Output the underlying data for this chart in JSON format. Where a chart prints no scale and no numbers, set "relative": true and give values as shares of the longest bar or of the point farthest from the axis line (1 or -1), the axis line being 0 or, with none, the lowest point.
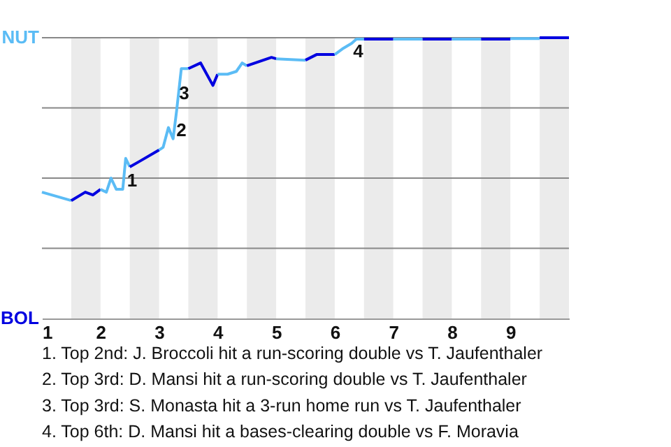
{
  "chart_data": {
    "type": "line",
    "relative": true,
    "xlim": [
      1,
      10
    ],
    "xticks": [
      {
        "value": 1,
        "label": "1"
      },
      {
        "value": 2,
        "label": "2"
      },
      {
        "value": 3,
        "label": "3"
      },
      {
        "value": 4,
        "label": "4"
      },
      {
        "value": 5,
        "label": "5"
      },
      {
        "value": 6,
        "label": "6"
      },
      {
        "value": 7,
        "label": "7"
      },
      {
        "value": 8,
        "label": "8"
      },
      {
        "value": 9,
        "label": "9"
      }
    ],
    "grid": "y",
    "line_style": "solid",
    "marker": "none",
    "series": [
      {
        "color": "#5bbcf5",
        "x": [
          1,
          1.5
        ],
        "values": [
          0.45,
          0.42
        ]
      },
      {
        "color": "#0000e0",
        "x": [
          1.5,
          1.74,
          1.87,
          2
        ],
        "values": [
          0.42,
          0.45,
          0.44,
          0.46
        ]
      },
      {
        "color": "#5bbcf5",
        "x": [
          2,
          2.1,
          2.18,
          2.27,
          2.38,
          2.43,
          2.5
        ],
        "values": [
          0.46,
          0.45,
          0.5,
          0.46,
          0.46,
          0.57,
          0.54
        ]
      },
      {
        "color": "#0000e0",
        "x": [
          2.5,
          2.67,
          3
        ],
        "values": [
          0.54,
          0.56,
          0.6
        ]
      },
      {
        "color": "#5bbcf5",
        "x": [
          3,
          3.07,
          3.16,
          3.24,
          3.3,
          3.38,
          3.5
        ],
        "values": [
          0.6,
          0.61,
          0.68,
          0.64,
          0.74,
          0.89,
          0.89
        ]
      },
      {
        "color": "#0000e0",
        "x": [
          3.5,
          3.71,
          3.92,
          4
        ],
        "values": [
          0.89,
          0.91,
          0.83,
          0.87
        ]
      },
      {
        "color": "#5bbcf5",
        "x": [
          4,
          4.17,
          4.32,
          4.42,
          4.5
        ],
        "values": [
          0.87,
          0.87,
          0.88,
          0.91,
          0.9
        ]
      },
      {
        "color": "#0000e0",
        "x": [
          4.5,
          4.92,
          5
        ],
        "values": [
          0.9,
          0.93,
          0.925
        ]
      },
      {
        "color": "#5bbcf5",
        "x": [
          5,
          5.5
        ],
        "values": [
          0.925,
          0.92
        ]
      },
      {
        "color": "#0000e0",
        "x": [
          5.5,
          5.69,
          6
        ],
        "values": [
          0.92,
          0.94,
          0.94
        ]
      },
      {
        "color": "#5bbcf5",
        "x": [
          6,
          6.13,
          6.29,
          6.37,
          6.5
        ],
        "values": [
          0.94,
          0.96,
          0.98,
          0.995,
          0.995
        ]
      },
      {
        "color": "#0000e0",
        "x": [
          6.5,
          7
        ],
        "values": [
          0.995,
          0.995
        ]
      },
      {
        "color": "#5bbcf5",
        "x": [
          7,
          7.5
        ],
        "values": [
          0.995,
          0.995
        ]
      },
      {
        "color": "#0000e0",
        "x": [
          7.5,
          8
        ],
        "values": [
          0.995,
          0.995
        ]
      },
      {
        "color": "#5bbcf5",
        "x": [
          8,
          8.5
        ],
        "values": [
          0.995,
          0.995
        ]
      },
      {
        "color": "#0000e0",
        "x": [
          8.5,
          9
        ],
        "values": [
          0.995,
          0.995
        ]
      },
      {
        "color": "#5bbcf5",
        "x": [
          9,
          9.5
        ],
        "values": [
          0.997,
          0.997
        ]
      },
      {
        "color": "#0000e0",
        "x": [
          9.5,
          10
        ],
        "values": [
          1,
          1
        ]
      }
    ],
    "bands": [
      {
        "axis": "x",
        "from": 1.5,
        "to": 2,
        "color": "#ebebeb"
      },
      {
        "axis": "x",
        "from": 2.5,
        "to": 3,
        "color": "#ebebeb"
      },
      {
        "axis": "x",
        "from": 3.5,
        "to": 4,
        "color": "#ebebeb"
      },
      {
        "axis": "x",
        "from": 4.5,
        "to": 5,
        "color": "#ebebeb"
      },
      {
        "axis": "x",
        "from": 5.5,
        "to": 6,
        "color": "#ebebeb"
      },
      {
        "axis": "x",
        "from": 6.5,
        "to": 7,
        "color": "#ebebeb"
      },
      {
        "axis": "x",
        "from": 7.5,
        "to": 8,
        "color": "#ebebeb"
      },
      {
        "axis": "x",
        "from": 8.5,
        "to": 9,
        "color": "#ebebeb"
      },
      {
        "axis": "x",
        "from": 9.5,
        "to": 10,
        "color": "#ebebeb"
      }
    ],
    "annotations": [
      "NUT",
      "BOL",
      {
        "text": "1",
        "x": 2.54,
        "y": 0.49
      },
      {
        "text": "2",
        "x": 3.38,
        "y": 0.67
      },
      {
        "text": "3",
        "x": 3.43,
        "y": 0.8
      },
      {
        "text": "4",
        "x": 6.4,
        "y": 0.95
      },
      "1. Top 2nd: J. Broccoli hit a run-scoring double vs T. Jaufenthaler",
      "2. Top 3rd: D. Mansi hit a run-scoring double vs T. Jaufenthaler",
      "3. Top 3rd: S. Monasta hit a 3-run home run vs T. Jaufenthaler",
      "4. Top 6th: D. Mansi hit a bases-clearing double vs F. Moravia"
    ]
  }
}
